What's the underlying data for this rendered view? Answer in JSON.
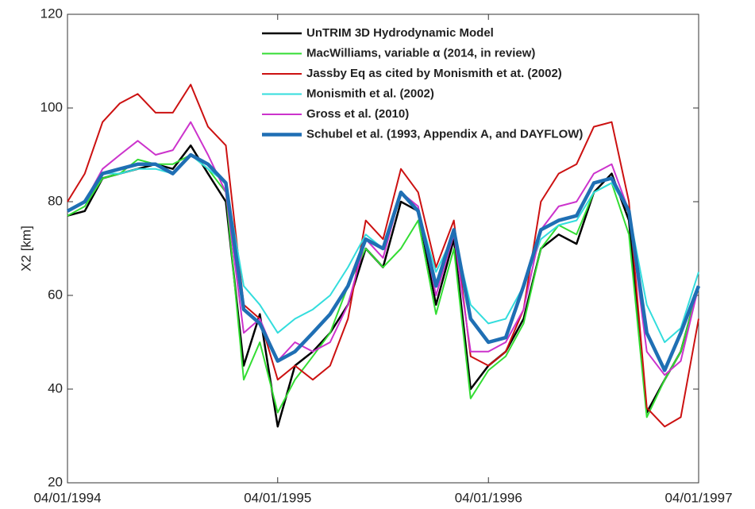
{
  "chart_data": {
    "type": "line",
    "ylabel": "X2  [km]",
    "x": [
      "04/01/1994",
      "05/01/1994",
      "06/01/1994",
      "07/01/1994",
      "08/01/1994",
      "09/01/1994",
      "10/01/1994",
      "11/01/1994",
      "12/01/1994",
      "01/01/1995",
      "02/01/1995",
      "03/01/1995",
      "04/01/1995",
      "05/01/1995",
      "06/01/1995",
      "07/01/1995",
      "08/01/1995",
      "09/01/1995",
      "10/01/1995",
      "11/01/1995",
      "12/01/1995",
      "01/01/1996",
      "02/01/1996",
      "03/01/1996",
      "04/01/1996",
      "05/01/1996",
      "06/01/1996",
      "07/01/1996",
      "08/01/1996",
      "09/01/1996",
      "10/01/1996",
      "11/01/1996",
      "12/01/1996",
      "01/01/1997",
      "02/01/1997",
      "03/01/1997",
      "04/01/1997"
    ],
    "xlim": [
      "04/01/1994",
      "04/01/1997"
    ],
    "xticks": [
      "04/01/1994",
      "04/01/1995",
      "04/01/1996",
      "04/01/1997"
    ],
    "ylim": [
      20,
      120
    ],
    "yticks": [
      20,
      40,
      60,
      80,
      100,
      120
    ],
    "legend": "top-center",
    "series": [
      {
        "name": "UnTRIM 3D Hydrodynamic Model",
        "color": "#000000",
        "width": 2.5,
        "values": [
          77,
          78,
          85,
          86,
          87,
          88,
          87,
          92,
          86,
          80,
          45,
          56,
          32,
          45,
          48,
          52,
          58,
          70,
          66,
          80,
          78,
          58,
          72,
          40,
          45,
          48,
          55,
          70,
          73,
          71,
          82,
          86,
          76,
          35,
          42,
          48,
          62
        ]
      },
      {
        "name": "MacWilliams, variable α (2014, in review)",
        "color": "#33dd33",
        "width": 2,
        "values": [
          77,
          79,
          85,
          86,
          89,
          88,
          88,
          90,
          87,
          82,
          42,
          50,
          35,
          42,
          47,
          52,
          62,
          70,
          66,
          70,
          76,
          56,
          70,
          38,
          44,
          47,
          54,
          70,
          75,
          73,
          82,
          84,
          73,
          34,
          42,
          48,
          62
        ]
      },
      {
        "name": "Jassby Eq as cited by Monismith et at. (2002)",
        "color": "#cc1111",
        "width": 2,
        "values": [
          80,
          86,
          97,
          101,
          103,
          99,
          99,
          105,
          96,
          92,
          58,
          55,
          42,
          45,
          42,
          45,
          55,
          76,
          72,
          87,
          82,
          66,
          76,
          47,
          45,
          48,
          57,
          80,
          86,
          88,
          96,
          97,
          80,
          36,
          32,
          34,
          55
        ]
      },
      {
        "name": "Monismith et al. (2002)",
        "color": "#33dddd",
        "width": 2,
        "values": [
          78,
          80,
          86,
          86,
          87,
          87,
          86,
          90,
          87,
          84,
          62,
          58,
          52,
          55,
          57,
          60,
          66,
          73,
          70,
          82,
          78,
          65,
          73,
          58,
          54,
          55,
          62,
          72,
          75,
          76,
          82,
          84,
          78,
          58,
          50,
          53,
          65
        ]
      },
      {
        "name": "Gross et al. (2010)",
        "color": "#cc33cc",
        "width": 2,
        "values": [
          78,
          80,
          87,
          90,
          93,
          90,
          91,
          97,
          90,
          82,
          52,
          55,
          46,
          50,
          48,
          50,
          58,
          72,
          68,
          82,
          79,
          60,
          73,
          48,
          48,
          50,
          57,
          74,
          79,
          80,
          86,
          88,
          78,
          48,
          43,
          46,
          62
        ]
      },
      {
        "name": "Schubel et al. (1993, Appendix A, and DAYFLOW)",
        "color": "#1f6fb4",
        "width": 4.5,
        "values": [
          78,
          80,
          86,
          87,
          88,
          88,
          86,
          90,
          88,
          84,
          57,
          54,
          46,
          48,
          52,
          56,
          62,
          72,
          70,
          82,
          78,
          62,
          74,
          55,
          50,
          51,
          62,
          74,
          76,
          77,
          84,
          85,
          78,
          52,
          44,
          52,
          62
        ]
      }
    ]
  }
}
